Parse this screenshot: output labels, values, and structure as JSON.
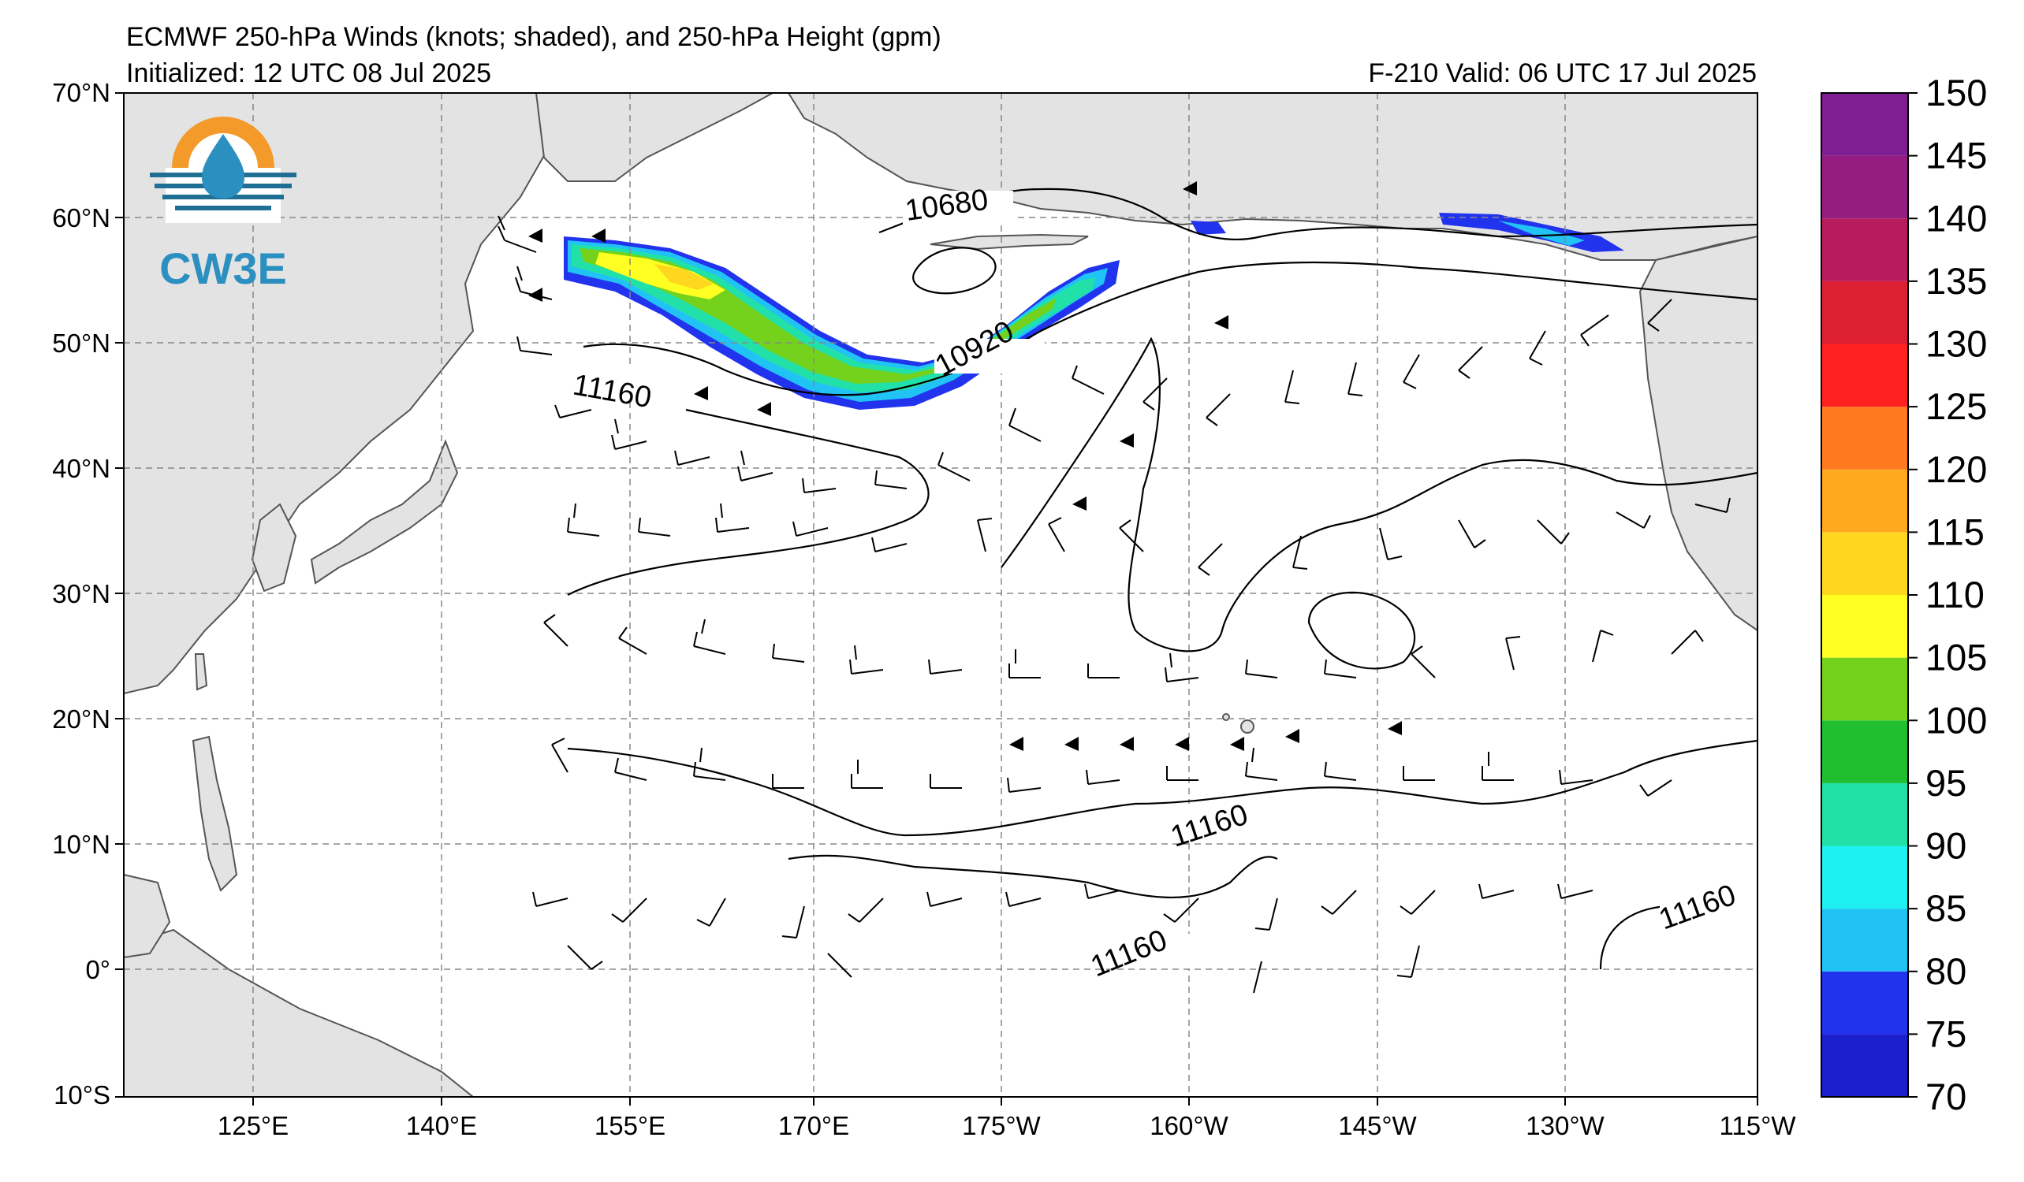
{
  "header": {
    "title": "ECMWF 250-hPa Winds (knots; shaded), and 250-hPa Height (gpm)",
    "initialized": "Initialized: 12 UTC 08 Jul 2025",
    "valid": "F-210  Valid: 06 UTC 17 Jul 2025"
  },
  "logo": {
    "text": "CW3E",
    "icon": "water-drop-sun-icon"
  },
  "axes": {
    "lat_labels": [
      "70°N",
      "60°N",
      "50°N",
      "40°N",
      "30°N",
      "20°N",
      "10°N",
      "0°",
      "10°S"
    ],
    "lon_labels": [
      "125°E",
      "140°E",
      "155°E",
      "170°E",
      "175°W",
      "160°W",
      "145°W",
      "130°W",
      "115°W"
    ]
  },
  "contours": {
    "labels": [
      "10680",
      "10920",
      "11160",
      "11160",
      "11160",
      "11160"
    ]
  },
  "colorbar": {
    "levels": [
      {
        "value": "70",
        "color": "#1c1fcc"
      },
      {
        "value": "75",
        "color": "#2233ee"
      },
      {
        "value": "80",
        "color": "#21c3f5"
      },
      {
        "value": "85",
        "color": "#1ef0f0"
      },
      {
        "value": "90",
        "color": "#22e1a8"
      },
      {
        "value": "95",
        "color": "#1fbf30"
      },
      {
        "value": "100",
        "color": "#74d21c"
      },
      {
        "value": "105",
        "color": "#ffff22"
      },
      {
        "value": "110",
        "color": "#ffd71f"
      },
      {
        "value": "115",
        "color": "#ffa91f"
      },
      {
        "value": "120",
        "color": "#ff7a1f"
      },
      {
        "value": "125",
        "color": "#ff2020"
      },
      {
        "value": "130",
        "color": "#dd1f33"
      },
      {
        "value": "135",
        "color": "#b81c5c"
      },
      {
        "value": "140",
        "color": "#951c80"
      },
      {
        "value": "145",
        "color": "#7e1d94"
      }
    ],
    "tick_labels": [
      "70",
      "75",
      "80",
      "85",
      "90",
      "95",
      "100",
      "105",
      "110",
      "115",
      "120",
      "125",
      "130",
      "135",
      "140",
      "145",
      "150"
    ]
  }
}
